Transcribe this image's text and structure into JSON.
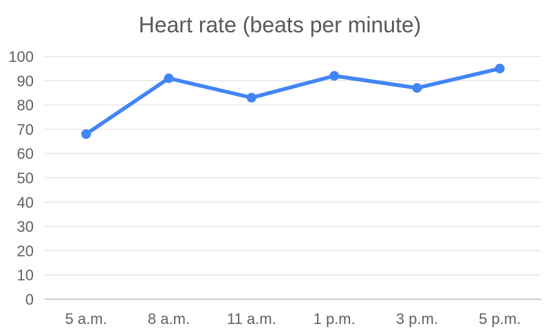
{
  "chart_data": {
    "type": "line",
    "title": "Heart rate (beats per minute)",
    "categories": [
      "5 a.m.",
      "8 a.m.",
      "11 a.m.",
      "1 p.m.",
      "3 p.m.",
      "5 p.m."
    ],
    "values": [
      68,
      91,
      83,
      92,
      87,
      95
    ],
    "series_name": "Heart rate",
    "xlabel": "",
    "ylabel": "",
    "ylim": [
      0,
      100
    ],
    "ytick_step": 10,
    "ytick_labels": [
      "0",
      "10",
      "20",
      "30",
      "40",
      "50",
      "60",
      "70",
      "80",
      "90",
      "100"
    ],
    "grid": true,
    "legend_position": "none",
    "line_color": "#4285f4",
    "point_color": "#4285f4",
    "gridline_color": "#e6e6e6",
    "baseline_color": "#cccccc",
    "tick_text_color": "#616161",
    "title_color": "#5a5a5a",
    "background_color": "#ffffff"
  }
}
